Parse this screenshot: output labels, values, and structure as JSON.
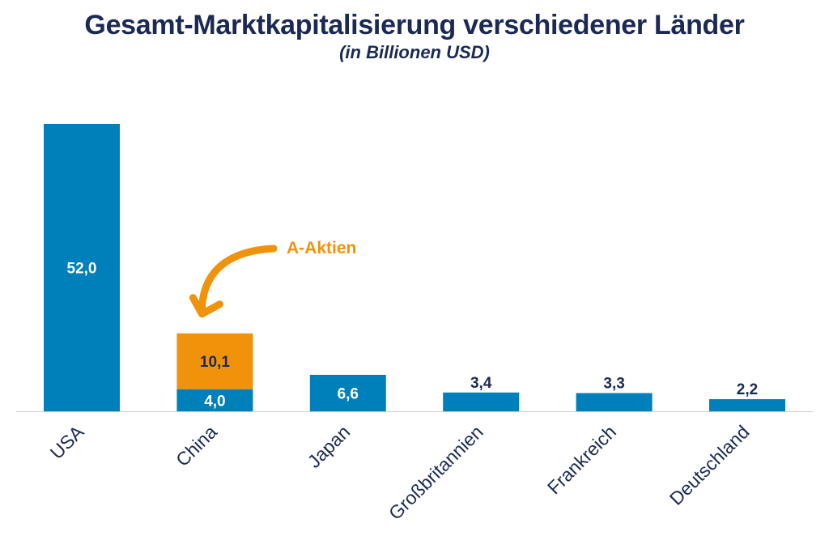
{
  "title": "Gesamt-Marktkapitalisierung verschiedener Länder",
  "subtitle": "(in Billionen USD)",
  "colors": {
    "primary": "#0080ba",
    "highlight": "#f0930a",
    "dark_text": "#1b2a55",
    "axis": "#cccccc"
  },
  "chart_data": {
    "type": "bar",
    "stacked": true,
    "categories": [
      "USA",
      "China",
      "Japan",
      "Großbritannien",
      "Frankreich",
      "Deutschland"
    ],
    "series": [
      {
        "values": [
          52.0,
          4.0,
          6.6,
          3.4,
          3.3,
          2.2
        ],
        "labels": [
          "52,0",
          "4,0",
          "6,6",
          "3,4",
          "3,3",
          "2,2"
        ]
      },
      {
        "values": [
          null,
          10.1,
          null,
          null,
          null,
          null
        ],
        "labels": [
          null,
          "10,1",
          null,
          null,
          null,
          null
        ]
      }
    ],
    "annotation": {
      "text": "A-Aktien",
      "target_category": "China"
    },
    "ylim": [
      0,
      52
    ],
    "grid": false,
    "legend": "none"
  }
}
